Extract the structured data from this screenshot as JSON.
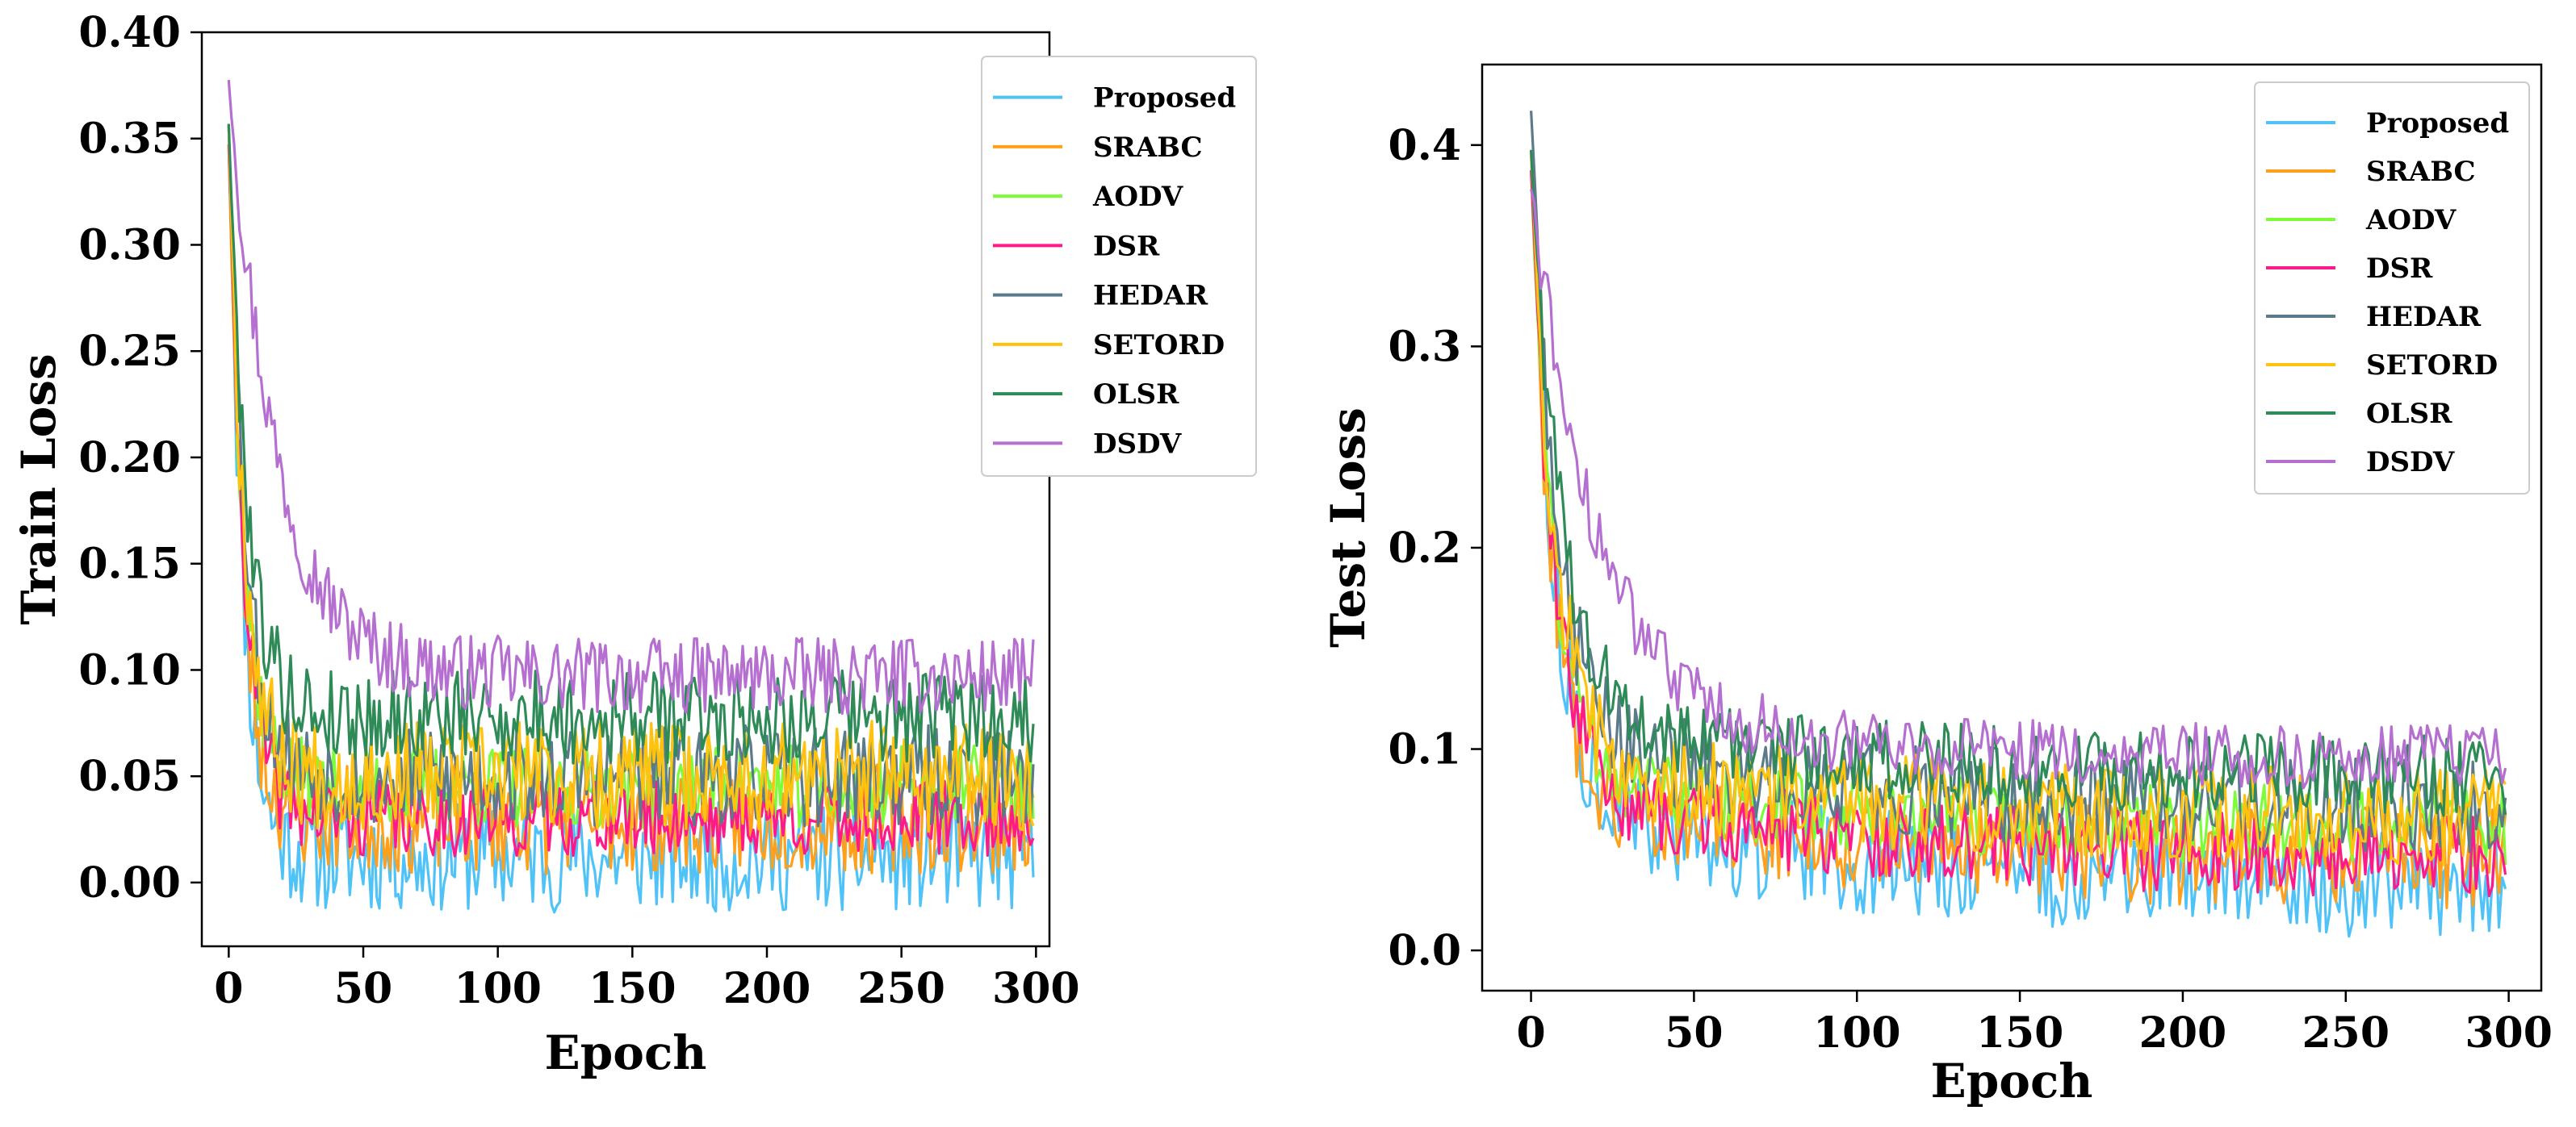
{
  "colors": {
    "Proposed": "#4fc3f7",
    "SRABC": "#ff9f1a",
    "AODV": "#7cfc3a",
    "DSR": "#ff1a8c",
    "HEDAR": "#5b7a8a",
    "SETORD": "#ffc20e",
    "OLSR": "#2e8b57",
    "DSDV": "#b56fd0"
  },
  "chart_data": [
    {
      "id": "train",
      "type": "line",
      "title": "",
      "xlabel": "Epoch",
      "ylabel": "Train Loss",
      "xlim": [
        -10,
        305
      ],
      "ylim": [
        -0.03,
        0.4
      ],
      "xticks": [
        0,
        50,
        100,
        150,
        200,
        250,
        300
      ],
      "xtick_labels": [
        "0",
        "50",
        "100",
        "150",
        "200",
        "250",
        "300"
      ],
      "yticks": [
        0.0,
        0.05,
        0.1,
        0.15,
        0.2,
        0.25,
        0.3,
        0.35,
        0.4
      ],
      "ytick_labels": [
        "0.00",
        "0.05",
        "0.10",
        "0.15",
        "0.20",
        "0.25",
        "0.30",
        "0.35",
        "0.40"
      ],
      "legend_position": "top-right",
      "epochs": 300,
      "series": [
        {
          "name": "Proposed",
          "start": 0.36,
          "plateau": 0.012,
          "tau": 5.5,
          "noise": 0.026,
          "seed": 11
        },
        {
          "name": "SRABC",
          "start": 0.35,
          "plateau": 0.03,
          "tau": 5.5,
          "noise": 0.026,
          "seed": 23
        },
        {
          "name": "AODV",
          "start": 0.35,
          "plateau": 0.045,
          "tau": 6.0,
          "noise": 0.02,
          "seed": 37
        },
        {
          "name": "DSR",
          "start": 0.35,
          "plateau": 0.03,
          "tau": 6.0,
          "noise": 0.018,
          "seed": 41
        },
        {
          "name": "HEDAR",
          "start": 0.36,
          "plateau": 0.05,
          "tau": 6.5,
          "noise": 0.024,
          "seed": 53
        },
        {
          "name": "SETORD",
          "start": 0.36,
          "plateau": 0.05,
          "tau": 6.0,
          "noise": 0.026,
          "seed": 67
        },
        {
          "name": "OLSR",
          "start": 0.36,
          "plateau": 0.078,
          "tau": 7.0,
          "noise": 0.022,
          "seed": 79
        },
        {
          "name": "DSDV",
          "start": 0.38,
          "plateau": 0.097,
          "tau": 18.0,
          "noise": 0.018,
          "seed": 97
        }
      ]
    },
    {
      "id": "test",
      "type": "line",
      "title": "",
      "xlabel": "Epoch",
      "ylabel": "Test Loss",
      "xlim": [
        -15,
        310
      ],
      "ylim": [
        -0.02,
        0.44
      ],
      "xticks": [
        0,
        50,
        100,
        150,
        200,
        250,
        300
      ],
      "xtick_labels": [
        "0",
        "50",
        "100",
        "150",
        "200",
        "250",
        "300"
      ],
      "yticks": [
        0.0,
        0.1,
        0.2,
        0.3,
        0.4
      ],
      "ytick_labels": [
        "0.0",
        "0.1",
        "0.2",
        "0.3",
        "0.4"
      ],
      "legend_position": "top-right",
      "epochs": 300,
      "series": [
        {
          "name": "Proposed",
          "start": 0.4,
          "plateau": 0.03,
          "tau": 7.0,
          "noise": 0.026,
          "decay": 0.045,
          "slow_tau": 90,
          "seed": 113
        },
        {
          "name": "SRABC",
          "start": 0.4,
          "plateau": 0.045,
          "tau": 6.5,
          "noise": 0.026,
          "decay": 0.035,
          "slow_tau": 90,
          "seed": 127
        },
        {
          "name": "AODV",
          "start": 0.39,
          "plateau": 0.06,
          "tau": 7.0,
          "noise": 0.02,
          "decay": 0.03,
          "slow_tau": 90,
          "seed": 131
        },
        {
          "name": "DSR",
          "start": 0.39,
          "plateau": 0.045,
          "tau": 7.0,
          "noise": 0.02,
          "decay": 0.035,
          "slow_tau": 90,
          "seed": 139
        },
        {
          "name": "HEDAR",
          "start": 0.42,
          "plateau": 0.07,
          "tau": 8.0,
          "noise": 0.024,
          "decay": 0.035,
          "slow_tau": 90,
          "seed": 149
        },
        {
          "name": "SETORD",
          "start": 0.4,
          "plateau": 0.065,
          "tau": 7.5,
          "noise": 0.024,
          "decay": 0.03,
          "slow_tau": 90,
          "seed": 157
        },
        {
          "name": "OLSR",
          "start": 0.4,
          "plateau": 0.085,
          "tau": 9.0,
          "noise": 0.02,
          "decay": 0.035,
          "slow_tau": 90,
          "seed": 163
        },
        {
          "name": "DSDV",
          "start": 0.38,
          "plateau": 0.095,
          "tau": 20.0,
          "noise": 0.016,
          "decay": 0.02,
          "slow_tau": 90,
          "seed": 173
        }
      ]
    }
  ]
}
